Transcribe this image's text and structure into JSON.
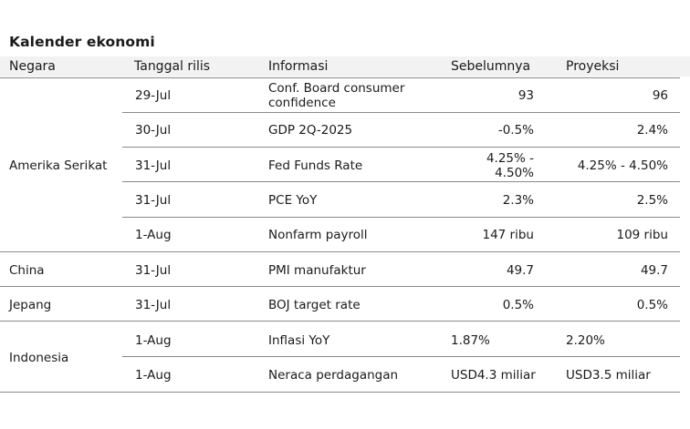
{
  "title": "Kalender ekonomi",
  "columns": [
    "Negara",
    "Tanggal rilis",
    "Informasi",
    "Sebelumnya",
    "Proyeksi"
  ],
  "countries": [
    "Amerika Serikat",
    "China",
    "Jepang",
    "Indonesia"
  ],
  "rows": [
    {
      "date": "29-Jul",
      "info": "Conf. Board consumer confidence",
      "prev": "93",
      "proj": "96"
    },
    {
      "date": "30-Jul",
      "info": "GDP 2Q-2025",
      "prev": "-0.5%",
      "proj": "2.4%"
    },
    {
      "date": "31-Jul",
      "info": "Fed Funds Rate",
      "prev": "4.25% - 4.50%",
      "proj": "4.25% - 4.50%"
    },
    {
      "date": "31-Jul",
      "info": "PCE YoY",
      "prev": "2.3%",
      "proj": "2.5%"
    },
    {
      "date": "1-Aug",
      "info": "Nonfarm payroll",
      "prev": "147 ribu",
      "proj": "109 ribu"
    },
    {
      "date": "31-Jul",
      "info": "PMI manufaktur",
      "prev": "49.7",
      "proj": "49.7"
    },
    {
      "date": "31-Jul",
      "info": "BOJ target rate",
      "prev": "0.5%",
      "proj": "0.5%"
    },
    {
      "date": "1-Aug",
      "info": "Inflasi YoY",
      "prev": "1.87%",
      "proj": "2.20%"
    },
    {
      "date": "1-Aug",
      "info": "Neraca perdagangan",
      "prev": "USD4.3 miliar",
      "proj": "USD3.5 miliar"
    }
  ]
}
